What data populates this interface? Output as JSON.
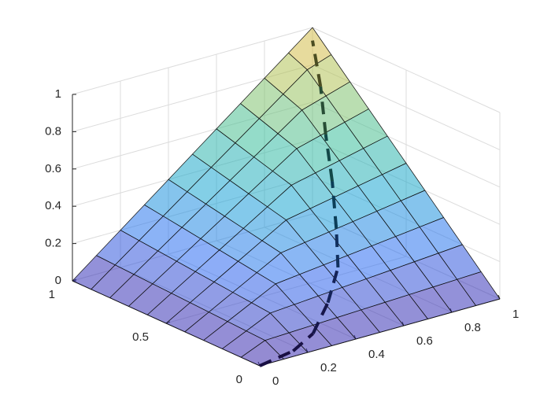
{
  "chart_data": {
    "type": "surface3d",
    "x": [
      0,
      0.1,
      0.2,
      0.3,
      0.4,
      0.5,
      0.6,
      0.7,
      0.8,
      0.9,
      1
    ],
    "y": [
      0,
      0.1,
      0.2,
      0.3,
      0.4,
      0.5,
      0.6,
      0.7,
      0.8,
      0.9,
      1
    ],
    "z": [
      [
        0,
        0,
        0,
        0,
        0,
        0,
        0,
        0,
        0,
        0,
        0
      ],
      [
        0,
        0.055,
        0.06,
        0.065,
        0.07,
        0.075,
        0.08,
        0.085,
        0.09,
        0.095,
        0.1
      ],
      [
        0,
        0.06,
        0.12,
        0.13,
        0.14,
        0.15,
        0.16,
        0.17,
        0.18,
        0.19,
        0.2
      ],
      [
        0,
        0.065,
        0.13,
        0.195,
        0.21,
        0.225,
        0.24,
        0.255,
        0.27,
        0.285,
        0.3
      ],
      [
        0,
        0.07,
        0.14,
        0.21,
        0.28,
        0.3,
        0.32,
        0.34,
        0.36,
        0.38,
        0.4
      ],
      [
        0,
        0.075,
        0.15,
        0.225,
        0.3,
        0.375,
        0.4,
        0.425,
        0.45,
        0.475,
        0.5
      ],
      [
        0,
        0.08,
        0.16,
        0.24,
        0.32,
        0.4,
        0.48,
        0.51,
        0.54,
        0.57,
        0.6
      ],
      [
        0,
        0.085,
        0.17,
        0.255,
        0.34,
        0.425,
        0.51,
        0.595,
        0.63,
        0.665,
        0.7
      ],
      [
        0,
        0.09,
        0.18,
        0.27,
        0.36,
        0.45,
        0.54,
        0.63,
        0.72,
        0.76,
        0.8
      ],
      [
        0,
        0.095,
        0.19,
        0.285,
        0.38,
        0.475,
        0.57,
        0.665,
        0.76,
        0.855,
        0.9
      ],
      [
        0,
        0.1,
        0.2,
        0.3,
        0.4,
        0.5,
        0.6,
        0.7,
        0.8,
        0.9,
        1
      ]
    ],
    "line": {
      "x": [
        0,
        0.17,
        0.3,
        0.44,
        0.56,
        0.67,
        0.77,
        0.86,
        0.94,
        1
      ],
      "y": [
        0,
        0.04,
        0.1,
        0.2,
        0.3,
        0.45,
        0.6,
        0.75,
        0.88,
        1
      ],
      "z": [
        0,
        0,
        0.02,
        0.09,
        0.19,
        0.29,
        0.44,
        0.59,
        0.76,
        0.93
      ]
    },
    "colormap": [
      "#3e26a8",
      "#2f6cf3",
      "#1ba5d6",
      "#3bbf9c",
      "#a7c35a",
      "#f5b942"
    ],
    "alpha": 0.55,
    "xlim": [
      0,
      1
    ],
    "ylim": [
      0,
      1
    ],
    "zlim": [
      0,
      1
    ],
    "xticks": [
      0,
      0.2,
      0.4,
      0.6,
      0.8,
      1
    ],
    "yticks": [
      0,
      0.5,
      1
    ],
    "zticks": [
      0,
      0.2,
      0.4,
      0.6,
      0.8,
      1
    ],
    "grid": true
  }
}
